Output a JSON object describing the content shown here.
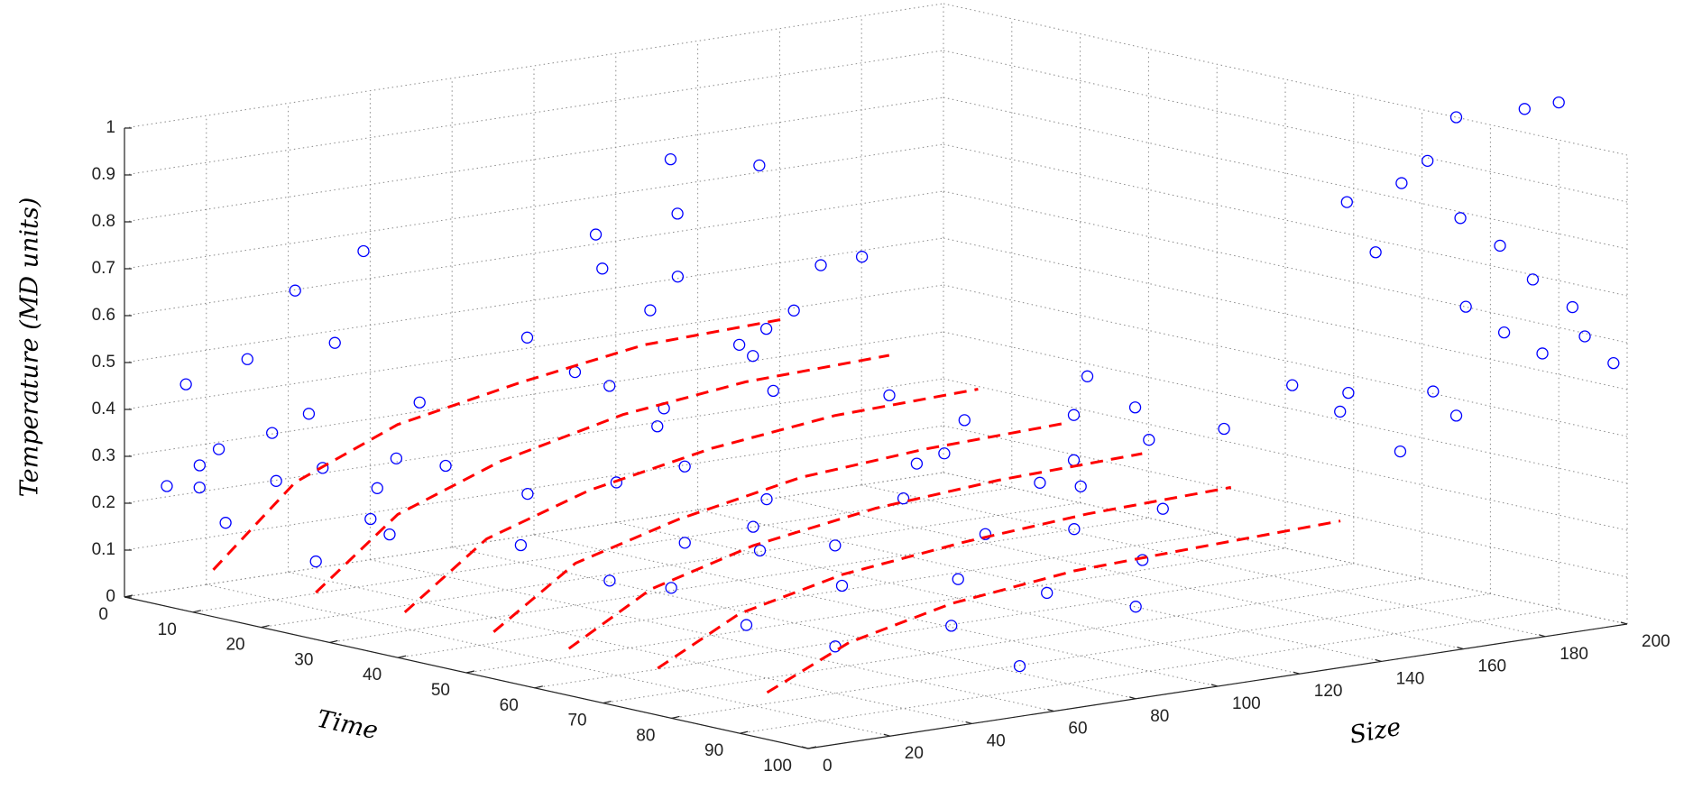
{
  "chart_data": {
    "type": "scatter3d",
    "xlabel": "Time",
    "ylabel": "Size",
    "zlabel": "Temperature (MD units)",
    "xlim": [
      0,
      100
    ],
    "ylim": [
      0,
      200
    ],
    "zlim": [
      0,
      1
    ],
    "xticks": [
      0,
      10,
      20,
      30,
      40,
      50,
      60,
      70,
      80,
      90,
      100
    ],
    "yticks": [
      0,
      20,
      40,
      60,
      80,
      100,
      120,
      140,
      160,
      180,
      200
    ],
    "zticks": [
      0,
      0.1,
      0.2,
      0.3,
      0.4,
      0.5,
      0.6,
      0.7,
      0.8,
      0.9,
      1
    ],
    "grid": true,
    "points": {
      "color": "#0000ff",
      "x": [
        5,
        8,
        3,
        10,
        12,
        15,
        6,
        2,
        18,
        20,
        22,
        25,
        14,
        9,
        28,
        4,
        11,
        17,
        24,
        30,
        32,
        35,
        38,
        40,
        42,
        45,
        48,
        50,
        52,
        55,
        58,
        36,
        44,
        60,
        33,
        47,
        62,
        65,
        68,
        70,
        72,
        75,
        78,
        80,
        83,
        85,
        88,
        90,
        92,
        95,
        97,
        66,
        74,
        86,
        5,
        10,
        15,
        20,
        8,
        25,
        30,
        12,
        35,
        18,
        3,
        28,
        40,
        45,
        50,
        55,
        60,
        65,
        48,
        52,
        58,
        62,
        85,
        90,
        75,
        70,
        72,
        78,
        82,
        88,
        92,
        95,
        98,
        65,
        68,
        80,
        85,
        90,
        60,
        64,
        70,
        74,
        78,
        80
      ],
      "y": [
        2,
        5,
        10,
        8,
        3,
        12,
        20,
        15,
        6,
        15,
        25,
        5,
        28,
        30,
        18,
        35,
        40,
        38,
        32,
        10,
        25,
        40,
        55,
        30,
        60,
        45,
        70,
        35,
        50,
        65,
        40,
        75,
        80,
        55,
        60,
        85,
        30,
        45,
        60,
        35,
        70,
        50,
        80,
        40,
        65,
        90,
        55,
        75,
        95,
        60,
        85,
        90,
        100,
        110,
        90,
        100,
        110,
        95,
        120,
        115,
        130,
        135,
        100,
        140,
        105,
        85,
        120,
        130,
        110,
        140,
        150,
        125,
        155,
        160,
        135,
        165,
        200,
        200,
        200,
        195,
        198,
        196,
        199,
        197,
        200,
        198,
        200,
        190,
        192,
        194,
        195,
        196,
        185,
        190,
        182,
        188,
        195,
        186
      ],
      "z": [
        0.25,
        0.3,
        0.45,
        0.18,
        0.35,
        0.28,
        0.5,
        0.22,
        0.4,
        0.32,
        0.27,
        0.15,
        0.55,
        0.38,
        0.2,
        0.62,
        0.72,
        0.3,
        0.45,
        0.25,
        0.35,
        0.28,
        0.5,
        0.2,
        0.42,
        0.33,
        0.6,
        0.15,
        0.38,
        0.3,
        0.25,
        0.7,
        0.55,
        0.22,
        0.8,
        0.65,
        0.18,
        0.3,
        0.25,
        0.12,
        0.35,
        0.2,
        0.28,
        0.1,
        0.22,
        0.3,
        0.15,
        0.2,
        0.25,
        0.08,
        0.18,
        0.4,
        0.35,
        0.32,
        0.45,
        0.6,
        0.72,
        0.55,
        0.8,
        0.5,
        0.65,
        0.78,
        0.42,
        0.58,
        0.35,
        0.38,
        0.4,
        0.35,
        0.3,
        0.38,
        0.33,
        0.28,
        0.42,
        0.36,
        0.3,
        0.34,
        1.05,
        1.08,
        1,
        0.85,
        0.9,
        0.8,
        0.75,
        0.7,
        0.65,
        0.6,
        0.55,
        0.8,
        0.7,
        0.62,
        0.58,
        0.55,
        0.4,
        0.35,
        0.42,
        0.3,
        0.38,
        0.45
      ]
    },
    "curves": [
      {
        "color": "#ff0000",
        "x": [
          13,
          13,
          13,
          13,
          13,
          13
        ],
        "y": [
          0,
          20,
          45,
          75,
          105,
          140
        ],
        "z": [
          0.1,
          0.26,
          0.35,
          0.4,
          0.44,
          0.45
        ]
      },
      {
        "color": "#ff0000",
        "x": [
          28,
          28,
          28,
          28,
          28,
          28
        ],
        "y": [
          0,
          20,
          45,
          75,
          105,
          140
        ],
        "z": [
          0.1,
          0.24,
          0.32,
          0.38,
          0.41,
          0.42
        ]
      },
      {
        "color": "#ff0000",
        "x": [
          41,
          41,
          41,
          41,
          41,
          41
        ],
        "y": [
          0,
          20,
          45,
          75,
          105,
          140
        ],
        "z": [
          0.1,
          0.23,
          0.3,
          0.35,
          0.38,
          0.39
        ]
      },
      {
        "color": "#ff0000",
        "x": [
          54,
          54,
          54,
          54,
          54,
          54
        ],
        "y": [
          0,
          20,
          45,
          75,
          105,
          140
        ],
        "z": [
          0.1,
          0.22,
          0.28,
          0.33,
          0.35,
          0.36
        ]
      },
      {
        "color": "#ff0000",
        "x": [
          65,
          65,
          65,
          65,
          65,
          65
        ],
        "y": [
          0,
          20,
          45,
          75,
          105,
          140
        ],
        "z": [
          0.1,
          0.2,
          0.26,
          0.3,
          0.32,
          0.33
        ]
      },
      {
        "color": "#ff0000",
        "x": [
          78,
          78,
          78,
          78,
          78,
          78
        ],
        "y": [
          0,
          20,
          45,
          75,
          105,
          140
        ],
        "z": [
          0.1,
          0.19,
          0.24,
          0.27,
          0.29,
          0.3
        ]
      },
      {
        "color": "#ff0000",
        "x": [
          94,
          94,
          94,
          94,
          94,
          94
        ],
        "y": [
          0,
          20,
          45,
          75,
          105,
          140
        ],
        "z": [
          0.1,
          0.18,
          0.23,
          0.26,
          0.27,
          0.28
        ]
      }
    ]
  }
}
